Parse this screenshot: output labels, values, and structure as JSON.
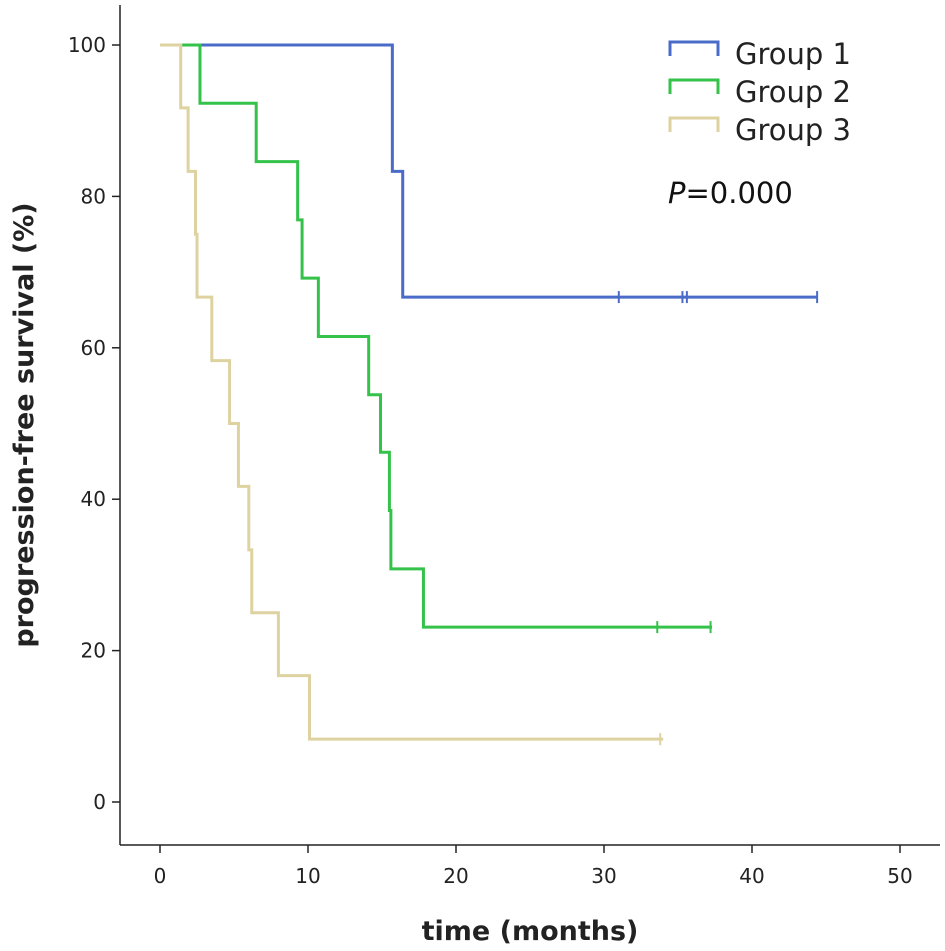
{
  "chart_data": {
    "type": "line",
    "subtype": "kaplan-meier step plot",
    "title": "",
    "xlabel": "time (months)",
    "ylabel": "progression-free survival (%)",
    "xlim": [
      0,
      50
    ],
    "ylim": [
      0,
      100
    ],
    "x_ticks": [
      "0",
      "10",
      "20",
      "30",
      "40",
      "50"
    ],
    "y_ticks": [
      "0",
      "20",
      "40",
      "60",
      "80",
      "100"
    ],
    "legend_position": "top-right",
    "annotation": {
      "italic": "P",
      "rest": "=0.000"
    },
    "series": [
      {
        "name": "Group 1",
        "color": "#4a6cc8",
        "steps": [
          [
            0,
            100
          ],
          [
            15.7,
            83.3
          ],
          [
            16.4,
            66.7
          ]
        ],
        "end_x": 44.4,
        "censored": [
          31,
          35.3,
          35.6,
          44.4
        ]
      },
      {
        "name": "Group 2",
        "color": "#34c24a",
        "steps": [
          [
            0,
            100
          ],
          [
            2.7,
            92.3
          ],
          [
            6.5,
            84.6
          ],
          [
            9.3,
            76.9
          ],
          [
            9.6,
            69.2
          ],
          [
            10.7,
            61.5
          ],
          [
            14.1,
            53.8
          ],
          [
            14.9,
            46.2
          ],
          [
            15.5,
            38.5
          ],
          [
            15.6,
            30.8
          ],
          [
            17.8,
            23.1
          ]
        ],
        "end_x": 37.3,
        "censored": [
          33.6,
          37.2
        ]
      },
      {
        "name": "Group 3",
        "color": "#ddd2a0",
        "steps": [
          [
            0,
            100
          ],
          [
            1.4,
            91.7
          ],
          [
            1.9,
            83.3
          ],
          [
            2.4,
            75
          ],
          [
            2.5,
            66.7
          ],
          [
            3.5,
            58.3
          ],
          [
            4.7,
            50
          ],
          [
            5.3,
            41.7
          ],
          [
            6,
            33.3
          ],
          [
            6.2,
            25
          ],
          [
            8,
            16.7
          ],
          [
            10.1,
            8.3
          ]
        ],
        "end_x": 34,
        "censored": [
          33.8
        ]
      }
    ]
  }
}
